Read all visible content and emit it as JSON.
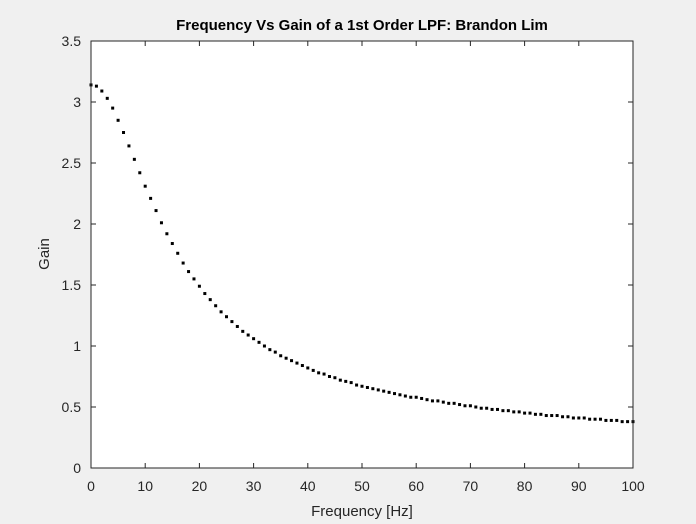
{
  "chart_data": {
    "type": "scatter",
    "title": "Frequency Vs Gain of a 1st Order LPF: Brandon Lim",
    "xlabel": "Frequency [Hz]",
    "ylabel": "Gain",
    "xlim": [
      0,
      100
    ],
    "ylim": [
      0,
      3.5
    ],
    "xticks": [
      "0",
      "10",
      "20",
      "30",
      "40",
      "50",
      "60",
      "70",
      "80",
      "90",
      "100"
    ],
    "yticks": [
      "0",
      "0.5",
      "1",
      "1.5",
      "2",
      "2.5",
      "3",
      "3.5"
    ],
    "grid": false,
    "marker_color": "#000000",
    "series": [
      {
        "x": [
          0,
          1,
          2,
          3,
          4,
          5,
          6,
          7,
          8,
          9,
          10,
          11,
          12,
          13,
          14,
          15,
          16,
          17,
          18,
          19,
          20,
          21,
          22,
          23,
          24,
          25,
          26,
          27,
          28,
          29,
          30,
          31,
          32,
          33,
          34,
          35,
          36,
          37,
          38,
          39,
          40,
          41,
          42,
          43,
          44,
          45,
          46,
          47,
          48,
          49,
          50,
          51,
          52,
          53,
          54,
          55,
          56,
          57,
          58,
          59,
          60,
          61,
          62,
          63,
          64,
          65,
          66,
          67,
          68,
          69,
          70,
          71,
          72,
          73,
          74,
          75,
          76,
          77,
          78,
          79,
          80,
          81,
          82,
          83,
          84,
          85,
          86,
          87,
          88,
          89,
          90,
          91,
          92,
          93,
          94,
          95,
          96,
          97,
          98,
          99,
          100
        ],
        "values": [
          3.14,
          3.13,
          3.09,
          3.03,
          2.95,
          2.85,
          2.75,
          2.64,
          2.53,
          2.42,
          2.31,
          2.21,
          2.11,
          2.01,
          1.92,
          1.84,
          1.76,
          1.68,
          1.61,
          1.55,
          1.49,
          1.43,
          1.38,
          1.33,
          1.28,
          1.24,
          1.2,
          1.16,
          1.12,
          1.09,
          1.06,
          1.03,
          1.0,
          0.97,
          0.95,
          0.92,
          0.9,
          0.88,
          0.86,
          0.84,
          0.82,
          0.8,
          0.78,
          0.77,
          0.75,
          0.74,
          0.72,
          0.71,
          0.7,
          0.68,
          0.67,
          0.66,
          0.65,
          0.64,
          0.63,
          0.62,
          0.61,
          0.6,
          0.59,
          0.58,
          0.58,
          0.57,
          0.56,
          0.55,
          0.55,
          0.54,
          0.53,
          0.53,
          0.52,
          0.51,
          0.51,
          0.5,
          0.49,
          0.49,
          0.48,
          0.48,
          0.47,
          0.47,
          0.46,
          0.46,
          0.45,
          0.45,
          0.44,
          0.44,
          0.43,
          0.43,
          0.43,
          0.42,
          0.42,
          0.41,
          0.41,
          0.41,
          0.4,
          0.4,
          0.4,
          0.39,
          0.39,
          0.39,
          0.38,
          0.38,
          0.38
        ]
      }
    ]
  }
}
